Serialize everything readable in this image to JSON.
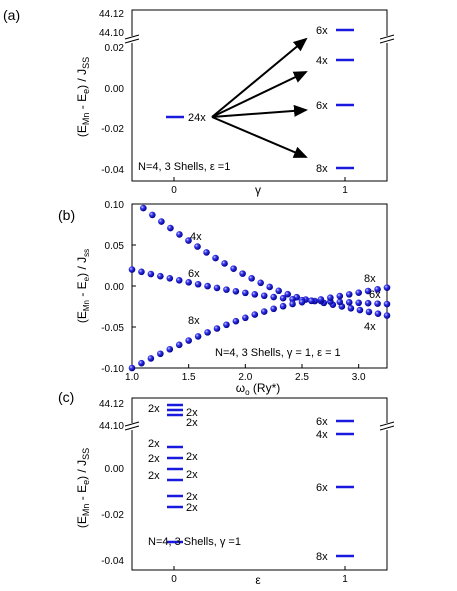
{
  "colors": {
    "marker": "#1a1adf",
    "marker_dark": "#00008c",
    "axis": "#000000"
  },
  "chart_data": [
    {
      "panel": "(a)",
      "type": "scatter",
      "ylabel": "(E_Mn - E_e) / J_SS",
      "xlabel": "γ",
      "annotation": "N=4, 3 Shells, ε =1",
      "x_ticks": [
        "0",
        "1"
      ],
      "y_ticks": [
        "0.02",
        "0.00",
        "-0.02",
        "-0.04"
      ],
      "y_break_ticks": [
        "44.12",
        "44.10"
      ],
      "levels": [
        {
          "x": 0,
          "y": -0.014,
          "label": "24x"
        },
        {
          "x": 1,
          "y": 44.105,
          "label": "6x"
        },
        {
          "x": 1,
          "y": 0.015,
          "label": "4x"
        },
        {
          "x": 1,
          "y": -0.008,
          "label": "6x"
        },
        {
          "x": 1,
          "y": -0.038,
          "label": "8x"
        }
      ]
    },
    {
      "panel": "(b)",
      "type": "scatter",
      "ylabel": "(E_Mn - E_e) / J_ss",
      "xlabel": "ω₀ (Ry*)",
      "annotation": "N=4, 3 Shells, γ = 1, ε = 1",
      "xlim": [
        1.0,
        3.25
      ],
      "ylim": [
        -0.1,
        0.1
      ],
      "x_ticks": [
        "1.0",
        "1.5",
        "2.0",
        "2.5",
        "3.0"
      ],
      "y_ticks": [
        "0.10",
        "0.05",
        "0.00",
        "-0.05",
        "-0.10"
      ],
      "series_labels": [
        "4x",
        "6x",
        "8x",
        "8x",
        "6x",
        "4x"
      ],
      "series": [
        {
          "x": [
            1.1,
            3.25
          ],
          "y": [
            0.095,
            -0.036
          ],
          "crossing": [
            2.6,
            -0.018
          ]
        },
        {
          "x": [
            1.0,
            3.25
          ],
          "y": [
            0.02,
            -0.022
          ],
          "crossing": [
            2.6,
            -0.018
          ]
        },
        {
          "x": [
            1.0,
            3.25
          ],
          "y": [
            -0.1,
            -0.002
          ],
          "crossing": [
            2.6,
            -0.018
          ]
        }
      ]
    },
    {
      "panel": "(c)",
      "type": "scatter",
      "ylabel": "(E_Mn - E_e) / J_SS",
      "xlabel": "ε",
      "annotation": "N=4, 3 Shells, γ =1",
      "x_ticks": [
        "0",
        "1"
      ],
      "y_ticks": [
        "0.00",
        "-0.02",
        "-0.04"
      ],
      "y_break_ticks": [
        "44.12",
        "44.10"
      ],
      "levels_break": [
        {
          "x": 0,
          "y": 44.121,
          "label": "2x"
        },
        {
          "x": 0,
          "y": 44.116,
          "label": "2x"
        },
        {
          "x": 0,
          "y": 44.111,
          "label": "2x"
        },
        {
          "x": 1,
          "y": 44.105,
          "label": "6x"
        },
        {
          "x": 1,
          "y": 44.099,
          "label": "4x"
        }
      ],
      "levels": [
        {
          "x": 0,
          "y": 0.009,
          "label": "2x"
        },
        {
          "x": 0,
          "y": 0.004,
          "label": "2x"
        },
        {
          "x": 0,
          "y": -0.001,
          "label": "2x"
        },
        {
          "x": 0,
          "y": -0.006,
          "label": "2x"
        },
        {
          "x": 0,
          "y": -0.012,
          "label": "2x"
        },
        {
          "x": 0,
          "y": -0.017,
          "label": "2x"
        },
        {
          "x": 0,
          "y": -0.032,
          "label": "2x"
        },
        {
          "x": 1,
          "y": -0.008,
          "label": "6x"
        },
        {
          "x": 1,
          "y": -0.038,
          "label": "8x"
        }
      ]
    }
  ]
}
